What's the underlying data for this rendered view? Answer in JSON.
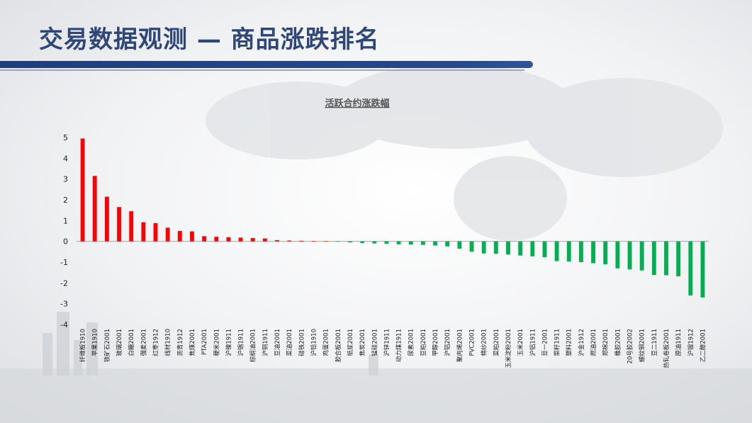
{
  "slide": {
    "title": "交易数据观测 — 商品涨跌排名"
  },
  "chart_data": {
    "type": "bar",
    "title": "活跃合约涨跌幅",
    "xlabel": "",
    "ylabel": "",
    "ylim": [
      -4,
      5
    ],
    "yticks": [
      5,
      4,
      3,
      2,
      1,
      0,
      -1,
      -2,
      -3,
      -4
    ],
    "positive_color": "#ff0000",
    "negative_color": "#00b050",
    "categories": [
      "纤维板1910",
      "苹果1910",
      "铁矿石2001",
      "玻璃2001",
      "白糖2001",
      "强麦2001",
      "红枣1912",
      "线材1910",
      "沥青1912",
      "焦煤2001",
      "PTA2001",
      "粳米2001",
      "沪镍1911",
      "沪锡1911",
      "棕榈油2001",
      "沪铜1911",
      "豆油2001",
      "菜油2001",
      "硅铁2001",
      "沪铅1910",
      "鸡蛋2001",
      "胶合板2001",
      "纸浆2001",
      "焦炭2001",
      "锰硅2001",
      "沪锌1911",
      "动力煤1911",
      "尿素2001",
      "豆粕2001",
      "甲醇2001",
      "沪铝2001",
      "聚丙烯2001",
      "PVC2001",
      "棉纱2001",
      "菜粕2001",
      "玉米淀粉2001",
      "玉米2001",
      "沪铝1911",
      "豆一2001",
      "菜籽1911",
      "塑料2001",
      "沪金1912",
      "燃油2001",
      "郑棉2001",
      "橡胶2001",
      "20号胶2002",
      "螺纹钢2001",
      "豆二1911",
      "热轧卷板2001",
      "原油1911",
      "沪银1912",
      "乙二醇2001"
    ],
    "values": [
      4.95,
      3.15,
      2.15,
      1.65,
      1.45,
      0.92,
      0.88,
      0.66,
      0.5,
      0.48,
      0.25,
      0.22,
      0.2,
      0.18,
      0.16,
      0.14,
      0.06,
      0.04,
      0.03,
      0.02,
      0.01,
      -0.02,
      -0.05,
      -0.08,
      -0.1,
      -0.12,
      -0.14,
      -0.15,
      -0.17,
      -0.2,
      -0.24,
      -0.35,
      -0.5,
      -0.58,
      -0.6,
      -0.63,
      -0.68,
      -0.72,
      -0.76,
      -0.95,
      -0.97,
      -1.0,
      -1.05,
      -1.1,
      -1.3,
      -1.35,
      -1.4,
      -1.62,
      -1.63,
      -1.68,
      -2.6,
      -2.7
    ]
  }
}
